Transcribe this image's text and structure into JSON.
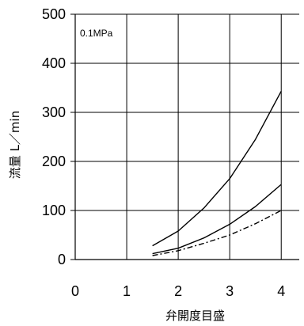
{
  "chart_data": {
    "type": "line",
    "annotation": "0.1MPa",
    "xlabel": "弁開度目盛",
    "ylabel": "流量 L／min",
    "x_ticks": [
      "0",
      "1",
      "2",
      "3",
      "4"
    ],
    "y_ticks": [
      "0",
      "100",
      "200",
      "300",
      "400",
      "500"
    ],
    "xlim": [
      0,
      4.35
    ],
    "ylim": [
      0,
      500
    ],
    "grid": true,
    "legend": "none",
    "series": [
      {
        "style": "solid",
        "x": [
          1.5,
          2.0,
          2.5,
          3.0,
          3.5,
          4.0
        ],
        "y": [
          28,
          58,
          105,
          165,
          245,
          343
        ]
      },
      {
        "style": "solid",
        "x": [
          1.5,
          2.0,
          2.5,
          3.0,
          3.5,
          4.0
        ],
        "y": [
          12,
          23,
          44,
          72,
          108,
          153
        ]
      },
      {
        "style": "dash-dot",
        "x": [
          1.5,
          2.0,
          2.5,
          3.0,
          3.5,
          4.0
        ],
        "y": [
          8,
          18,
          33,
          50,
          73,
          100
        ]
      }
    ]
  }
}
